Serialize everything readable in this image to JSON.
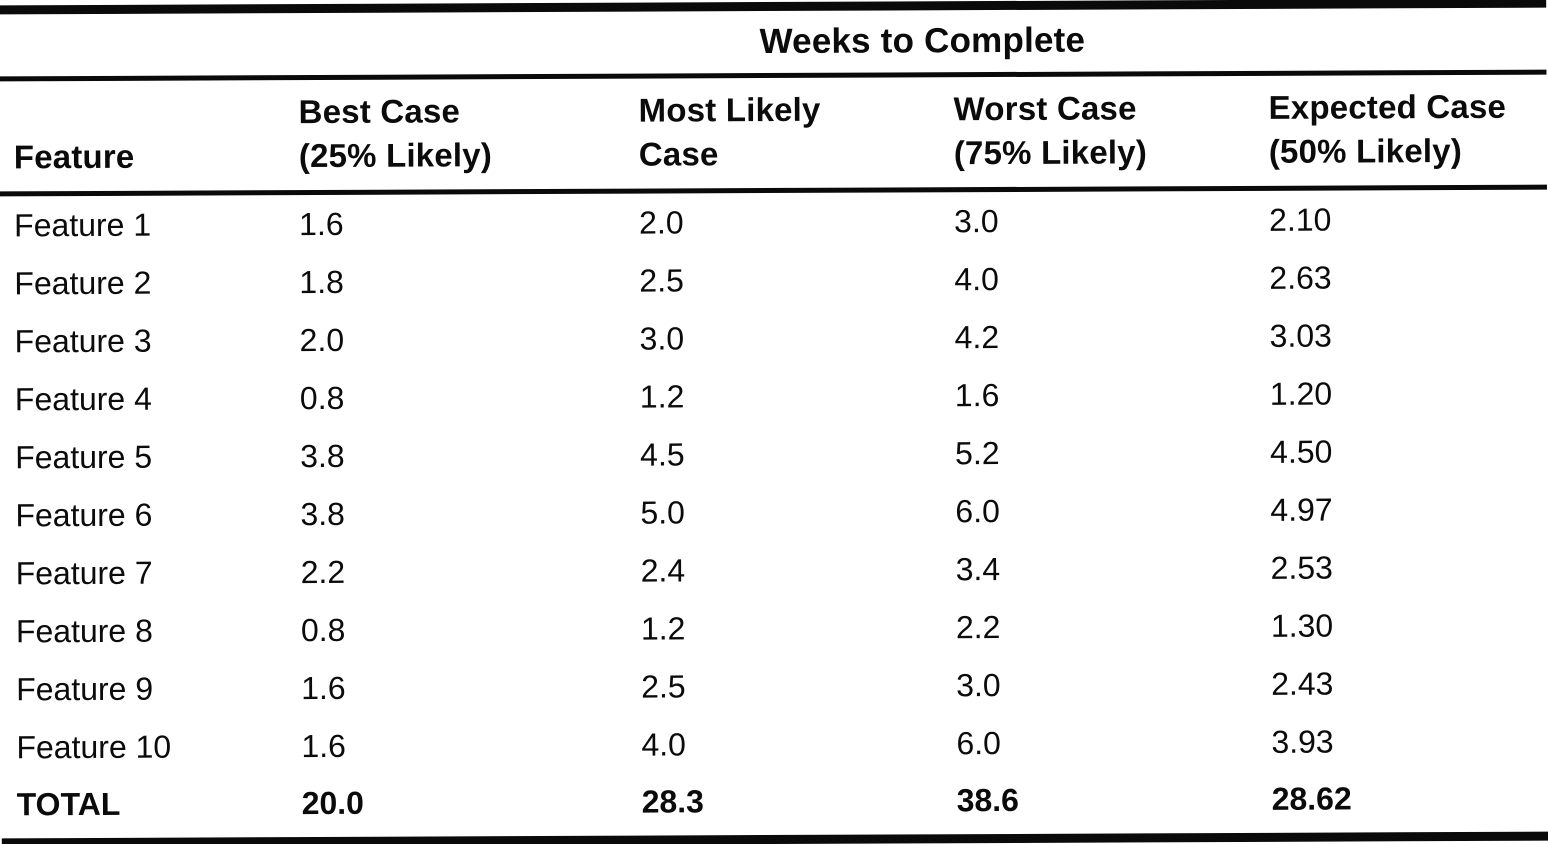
{
  "table": {
    "spanner_title": "Weeks to Complete",
    "columns": [
      {
        "label": "Feature",
        "sublabel": ""
      },
      {
        "label": "Best Case",
        "sublabel": "(25% Likely)"
      },
      {
        "label": "Most Likely",
        "sublabel": "Case"
      },
      {
        "label": "Worst Case",
        "sublabel": "(75% Likely)"
      },
      {
        "label": "Expected Case",
        "sublabel": "(50% Likely)"
      }
    ],
    "rows": [
      [
        "Feature 1",
        "1.6",
        "2.0",
        "3.0",
        "2.10"
      ],
      [
        "Feature 2",
        "1.8",
        "2.5",
        "4.0",
        "2.63"
      ],
      [
        "Feature 3",
        "2.0",
        "3.0",
        "4.2",
        "3.03"
      ],
      [
        "Feature 4",
        "0.8",
        "1.2",
        "1.6",
        "1.20"
      ],
      [
        "Feature 5",
        "3.8",
        "4.5",
        "5.2",
        "4.50"
      ],
      [
        "Feature 6",
        "3.8",
        "5.0",
        "6.0",
        "4.97"
      ],
      [
        "Feature 7",
        "2.2",
        "2.4",
        "3.4",
        "2.53"
      ],
      [
        "Feature 8",
        "0.8",
        "1.2",
        "2.2",
        "1.30"
      ],
      [
        "Feature 9",
        "1.6",
        "2.5",
        "3.0",
        "2.43"
      ],
      [
        "Feature 10",
        "1.6",
        "4.0",
        "6.0",
        "3.93"
      ]
    ],
    "total_row": [
      "TOTAL",
      "20.0",
      "28.3",
      "38.6",
      "28.62"
    ]
  },
  "chart_data": {
    "type": "table",
    "title": "Weeks to Complete",
    "columns": [
      "Feature",
      "Best Case (25% Likely)",
      "Most Likely Case",
      "Worst Case (75% Likely)",
      "Expected Case (50% Likely)"
    ],
    "rows": [
      [
        "Feature 1",
        1.6,
        2.0,
        3.0,
        2.1
      ],
      [
        "Feature 2",
        1.8,
        2.5,
        4.0,
        2.63
      ],
      [
        "Feature 3",
        2.0,
        3.0,
        4.2,
        3.03
      ],
      [
        "Feature 4",
        0.8,
        1.2,
        1.6,
        1.2
      ],
      [
        "Feature 5",
        3.8,
        4.5,
        5.2,
        4.5
      ],
      [
        "Feature 6",
        3.8,
        5.0,
        6.0,
        4.97
      ],
      [
        "Feature 7",
        2.2,
        2.4,
        3.4,
        2.53
      ],
      [
        "Feature 8",
        0.8,
        1.2,
        2.2,
        1.3
      ],
      [
        "Feature 9",
        1.6,
        2.5,
        3.0,
        2.43
      ],
      [
        "Feature 10",
        1.6,
        4.0,
        6.0,
        3.93
      ]
    ],
    "total": [
      "TOTAL",
      20.0,
      28.3,
      38.6,
      28.62
    ]
  },
  "colors": {
    "text": "#0b0b0b",
    "background": "#ffffff",
    "rule": "#0a0a0a"
  }
}
